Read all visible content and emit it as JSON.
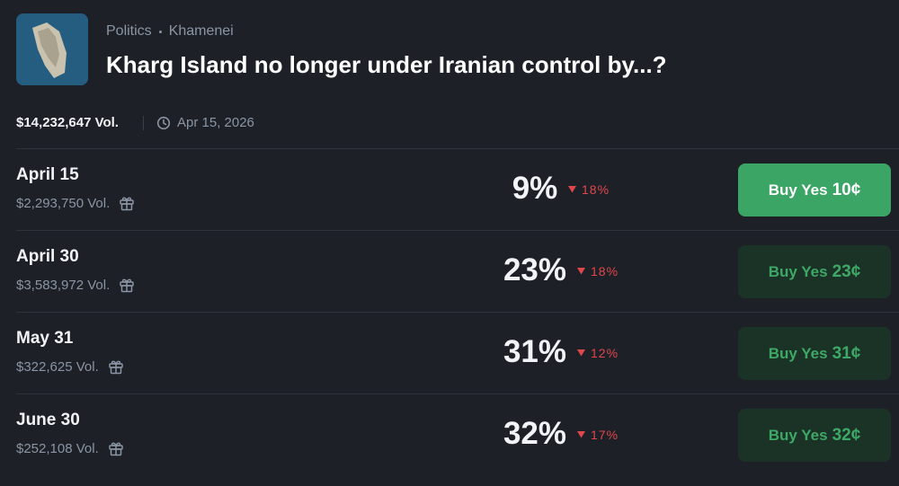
{
  "header": {
    "category": "Politics",
    "subcategory": "Khamenei",
    "title": "Kharg Island no longer under Iranian control by...?"
  },
  "meta": {
    "volume": "$14,232,647 Vol.",
    "end_date": "Apr 15, 2026"
  },
  "outcomes": [
    {
      "label": "April 15",
      "volume": "$2,293,750 Vol.",
      "probability": "9%",
      "change": "18%",
      "button_label": "Buy Yes",
      "price": "10¢"
    },
    {
      "label": "April 30",
      "volume": "$3,583,972 Vol.",
      "probability": "23%",
      "change": "18%",
      "button_label": "Buy Yes",
      "price": "23¢"
    },
    {
      "label": "May 31",
      "volume": "$322,625 Vol.",
      "probability": "31%",
      "change": "12%",
      "button_label": "Buy Yes",
      "price": "31¢"
    },
    {
      "label": "June 30",
      "volume": "$252,108 Vol.",
      "probability": "32%",
      "change": "17%",
      "button_label": "Buy Yes",
      "price": "32¢"
    }
  ]
}
